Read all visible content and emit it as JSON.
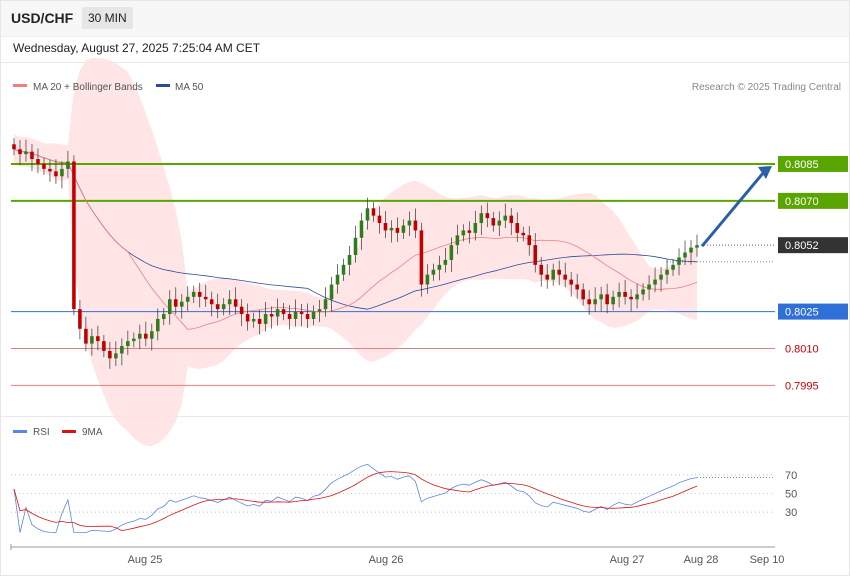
{
  "header": {
    "symbol": "USD/CHF",
    "timeframe": "30 MIN",
    "datetime": "Wednesday, August 27, 2025 7:25:04 AM CET"
  },
  "colors": {
    "candle_up": "#2e7d1a",
    "candle_down": "#c00000",
    "resistance_line": "#5aa500",
    "pivot_line": "#2f6fd8",
    "support_line": "#e08080",
    "current_price_bg": "#333333",
    "ma20": "#f08080",
    "bollinger_fill": "#ffe1e1",
    "ma50": "#2b4c9b",
    "rsi": "#5b86e5",
    "rsi_9ma": "#dd1111",
    "arrow": "#2b5fa8"
  },
  "chart_data": [
    {
      "type": "candlestick",
      "legend": [
        {
          "name": "MA 20 + Bollinger Bands",
          "color": "#f08080"
        },
        {
          "name": "MA 50",
          "color": "#2b4c9b"
        }
      ],
      "legend_position": "top-left",
      "credit": "Research © 2025 Trading Central",
      "y_range": [
        0.7985,
        0.8111
      ],
      "x_ticks": [
        "Aug 25",
        "Aug 26",
        "Aug 27",
        "Aug 28",
        "Sep 10"
      ],
      "levels": [
        {
          "label": "0.8085",
          "value": 0.8085,
          "kind": "resistance"
        },
        {
          "label": "0.8070",
          "value": 0.807,
          "kind": "resistance"
        },
        {
          "label": "0.8052",
          "value": 0.8052,
          "kind": "current"
        },
        {
          "label": "0.8025",
          "value": 0.8025,
          "kind": "pivot"
        },
        {
          "label": "0.8010",
          "value": 0.801,
          "kind": "support"
        },
        {
          "label": "0.7995",
          "value": 0.7995,
          "kind": "support"
        }
      ],
      "closes": [
        0.8091,
        0.8089,
        0.809,
        0.8087,
        0.8085,
        0.8083,
        0.8082,
        0.808,
        0.8083,
        0.8086,
        0.8026,
        0.8018,
        0.8012,
        0.8015,
        0.8013,
        0.8009,
        0.8006,
        0.8008,
        0.8011,
        0.8013,
        0.8014,
        0.8016,
        0.8014,
        0.8017,
        0.8022,
        0.8024,
        0.803,
        0.8027,
        0.8029,
        0.8031,
        0.8033,
        0.8031,
        0.803,
        0.8028,
        0.8026,
        0.8028,
        0.803,
        0.8027,
        0.8024,
        0.8021,
        0.8022,
        0.802,
        0.8024,
        0.8023,
        0.8026,
        0.8024,
        0.8022,
        0.8025,
        0.8024,
        0.8022,
        0.8025,
        0.8026,
        0.803,
        0.8036,
        0.804,
        0.8044,
        0.8048,
        0.8055,
        0.8062,
        0.8067,
        0.8064,
        0.8061,
        0.8058,
        0.8059,
        0.8057,
        0.806,
        0.8062,
        0.8058,
        0.8036,
        0.804,
        0.8042,
        0.8044,
        0.8046,
        0.8052,
        0.8056,
        0.8058,
        0.8057,
        0.8061,
        0.8065,
        0.8063,
        0.806,
        0.8062,
        0.8064,
        0.8061,
        0.8057,
        0.8056,
        0.8052,
        0.8044,
        0.804,
        0.8038,
        0.8042,
        0.804,
        0.8038,
        0.8036,
        0.8034,
        0.803,
        0.8028,
        0.803,
        0.8032,
        0.8028,
        0.8031,
        0.8033,
        0.8031,
        0.803,
        0.8032,
        0.8034,
        0.8036,
        0.8038,
        0.804,
        0.8042,
        0.8044,
        0.8047,
        0.8049,
        0.8051,
        0.8052
      ]
    },
    {
      "type": "line",
      "name": "RSI",
      "series": [
        {
          "name": "RSI",
          "color": "#5b86e5"
        },
        {
          "name": "9MA",
          "color": "#dd1111"
        }
      ],
      "y_range": [
        0,
        100
      ],
      "y_ticks": [
        70,
        50,
        30
      ],
      "rsi_value_latest": 64
    }
  ]
}
